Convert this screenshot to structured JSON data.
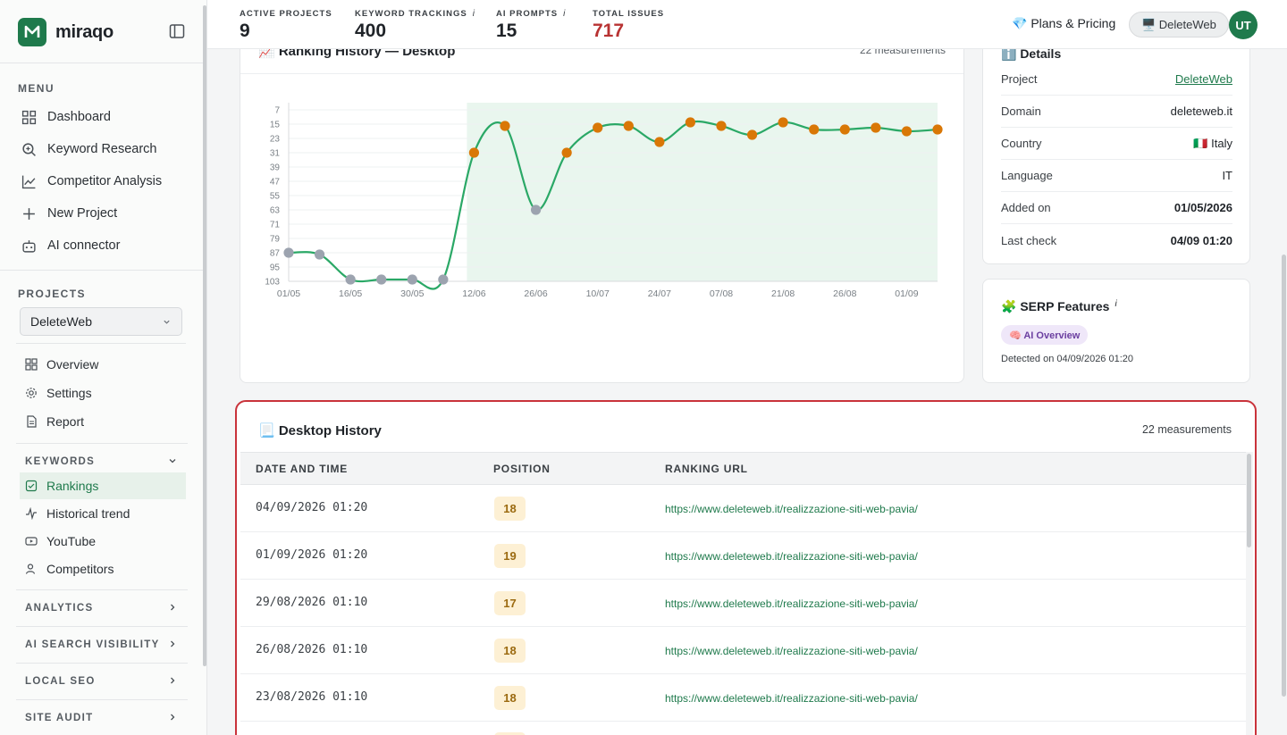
{
  "brand": {
    "name": "miraqo",
    "logo_letter": "M"
  },
  "sidebar": {
    "menu_heading": "MENU",
    "menu": [
      {
        "label": "Dashboard",
        "icon": "grid-icon"
      },
      {
        "label": "Keyword Research",
        "icon": "search-icon"
      },
      {
        "label": "Competitor Analysis",
        "icon": "line-chart-icon"
      },
      {
        "label": "New Project",
        "icon": "plus-icon"
      },
      {
        "label": "AI connector",
        "icon": "robot-icon"
      }
    ],
    "projects_heading": "PROJECTS",
    "project_selected": "DeleteWeb",
    "project_nav": [
      {
        "label": "Overview",
        "icon": "grid-icon"
      },
      {
        "label": "Settings",
        "icon": "gear-icon"
      },
      {
        "label": "Report",
        "icon": "document-icon"
      }
    ],
    "keywords_heading": "KEYWORDS",
    "keywords": [
      {
        "label": "Rankings",
        "icon": "checkbox-icon",
        "active": true
      },
      {
        "label": "Historical trend",
        "icon": "trend-icon",
        "active": false
      },
      {
        "label": "YouTube",
        "icon": "youtube-icon",
        "active": false
      },
      {
        "label": "Competitors",
        "icon": "user-icon",
        "active": false
      }
    ],
    "sections": [
      "ANALYTICS",
      "AI SEARCH VISIBILITY",
      "LOCAL SEO",
      "SITE AUDIT"
    ]
  },
  "topbar": {
    "stats": [
      {
        "label": "ACTIVE PROJECTS",
        "value": "9",
        "info": false
      },
      {
        "label": "KEYWORD TRACKINGS",
        "value": "400",
        "info": true
      },
      {
        "label": "AI PROMPTS",
        "value": "15",
        "info": true
      },
      {
        "label": "TOTAL ISSUES",
        "value": "717",
        "info": false
      }
    ],
    "info_glyph": "i",
    "plans_label": "💎 Plans & Pricing",
    "project_pill": "🖥️ DeleteWeb",
    "avatar_initials": "UT"
  },
  "chart_card": {
    "title": "📈 Ranking History — Desktop",
    "count": "22 measurements"
  },
  "chart_data": {
    "type": "line",
    "title": "Ranking History — Desktop",
    "x": [
      "01/05",
      "08/05",
      "16/05",
      "23/05",
      "30/05",
      "06/06",
      "12/06",
      "19/06",
      "26/06",
      "03/07",
      "10/07",
      "17/07",
      "24/07",
      "31/07",
      "07/08",
      "14/08",
      "21/08",
      "23/08",
      "26/08",
      "29/08",
      "01/09",
      "04/09"
    ],
    "x_tick_labels": [
      "01/05",
      "16/05",
      "30/05",
      "12/06",
      "26/06",
      "10/07",
      "24/07",
      "07/08",
      "21/08",
      "26/08",
      "01/09"
    ],
    "values": [
      87,
      88,
      102,
      102,
      102,
      102,
      31,
      16,
      63,
      31,
      17,
      16,
      25,
      14,
      16,
      21,
      14,
      18,
      18,
      17,
      19,
      18
    ],
    "in_top_range": [
      false,
      false,
      false,
      false,
      false,
      false,
      true,
      true,
      false,
      true,
      true,
      true,
      true,
      true,
      true,
      true,
      true,
      true,
      true,
      true,
      true,
      true
    ],
    "y_ticks": [
      7,
      15,
      23,
      31,
      39,
      47,
      55,
      63,
      71,
      79,
      87,
      95,
      103
    ],
    "ylim": [
      7,
      103
    ],
    "y_reversed": true,
    "colors": {
      "line": "#2aa866",
      "top": "#d97706",
      "out": "#9ca3af",
      "band": "#e9f6ee"
    }
  },
  "details": {
    "title": "ℹ️ Details",
    "rows": [
      {
        "key": "Project",
        "value": "DeleteWeb"
      },
      {
        "key": "Domain",
        "value": "deleteweb.it"
      },
      {
        "key": "Country",
        "value": "🇮🇹 Italy"
      },
      {
        "key": "Language",
        "value": "IT"
      },
      {
        "key": "Added on",
        "value": "01/05/2026"
      },
      {
        "key": "Last check",
        "value": "04/09 01:20"
      }
    ]
  },
  "serp": {
    "title": "🧩 SERP Features",
    "info_glyph": "i",
    "badge": "🧠 AI Overview",
    "detected": "Detected on 04/09/2026 01:20"
  },
  "history": {
    "title": "📃 Desktop History",
    "count": "22 measurements",
    "columns": [
      "DATE AND TIME",
      "POSITION",
      "RANKING URL"
    ],
    "rows": [
      {
        "date": "04/09/2026 01:20",
        "position": "18",
        "url": "https://www.deleteweb.it/realizzazione-siti-web-pavia/"
      },
      {
        "date": "01/09/2026 01:20",
        "position": "19",
        "url": "https://www.deleteweb.it/realizzazione-siti-web-pavia/"
      },
      {
        "date": "29/08/2026 01:10",
        "position": "17",
        "url": "https://www.deleteweb.it/realizzazione-siti-web-pavia/"
      },
      {
        "date": "26/08/2026 01:10",
        "position": "18",
        "url": "https://www.deleteweb.it/realizzazione-siti-web-pavia/"
      },
      {
        "date": "23/08/2026 01:10",
        "position": "18",
        "url": "https://www.deleteweb.it/realizzazione-siti-web-pavia/"
      }
    ]
  }
}
